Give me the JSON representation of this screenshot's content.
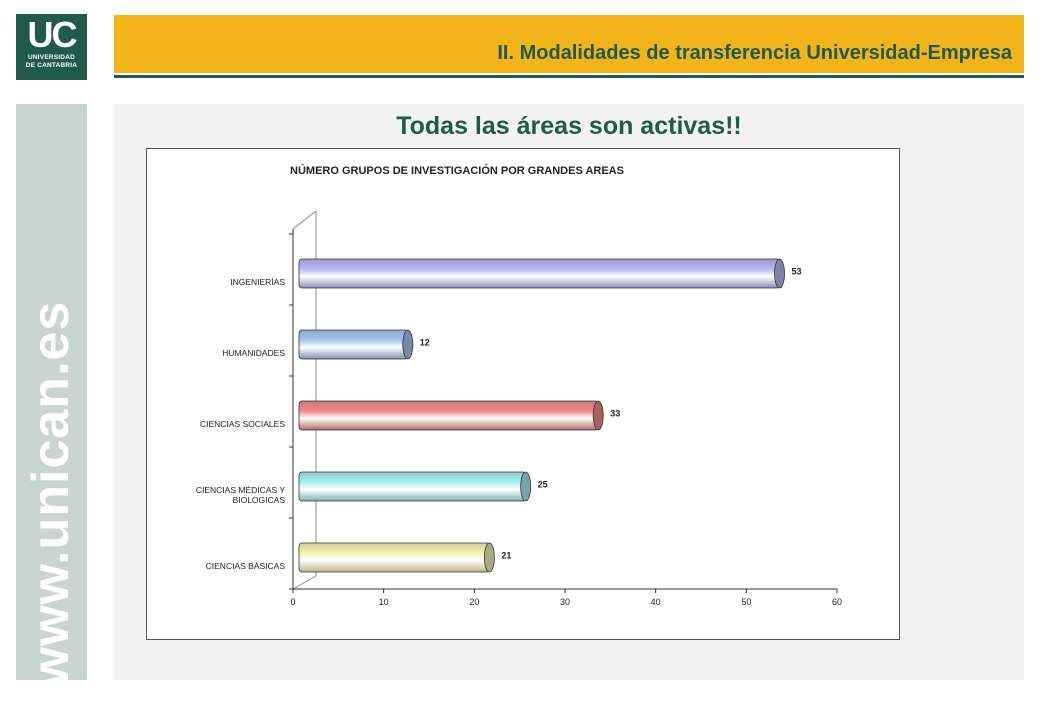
{
  "logo": {
    "mark": "UC",
    "line1": "UNIVERSIDAD",
    "line2": "DE CANTABRIA"
  },
  "header": {
    "title": "II. Modalidades de transferencia Universidad-Empresa"
  },
  "sidebar": {
    "text": "www.unican.es"
  },
  "slide": {
    "title": "Todas las áreas son activas!!"
  },
  "colors": {
    "green": "#1f5a4b",
    "gold": "#f2b419",
    "sage": "#c9d5d1"
  },
  "chart_data": {
    "type": "bar",
    "orientation": "horizontal",
    "title": "NÚMERO GRUPOS DE INVESTIGACIÓN POR GRANDES AREAS",
    "categories": [
      "INGENIERÍAS",
      "HUMANIDADES",
      "CIENCIAS SOCIALES",
      "CIENCIAS MÉDICAS Y BIOLOGICAS",
      "CIENCIAS BÁSICAS"
    ],
    "values": [
      53,
      12,
      33,
      25,
      21
    ],
    "bar_colors": [
      "#b8b8f2",
      "#a4c6f2",
      "#f08a8a",
      "#a8eef0",
      "#f7f2b4"
    ],
    "xlim": [
      0,
      60
    ],
    "xticks": [
      "0",
      "10",
      "20",
      "30",
      "40",
      "50",
      "60"
    ],
    "xlabel": "",
    "ylabel": "",
    "grid": false,
    "legend": "none",
    "style": "3d-cylinder"
  }
}
